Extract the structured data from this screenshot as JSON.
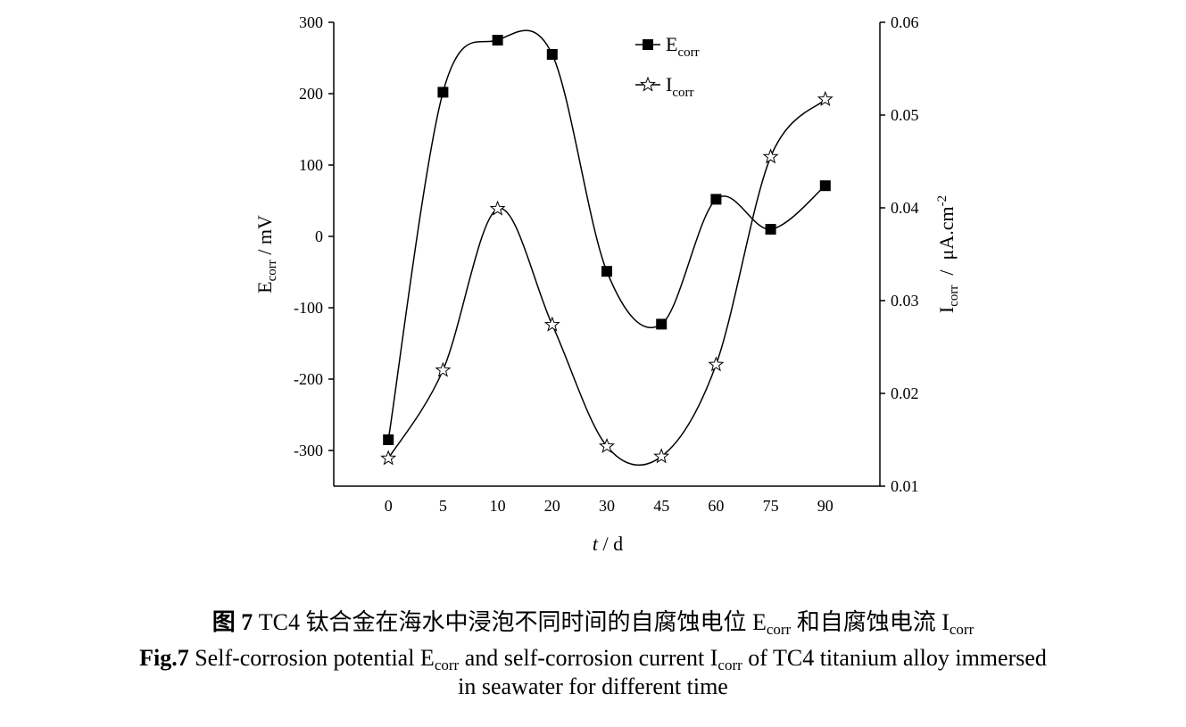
{
  "chart_data": {
    "type": "line",
    "categories": [
      "0",
      "5",
      "10",
      "20",
      "30",
      "45",
      "60",
      "75",
      "90"
    ],
    "x_label": {
      "main": "t",
      "rest": " / d"
    },
    "y_label": {
      "main": "E",
      "sub": "corr",
      "rest": " / mV"
    },
    "y2_label": {
      "main": "I",
      "sub": "corr",
      "rest": "  /  μA.cm",
      "sup": "-2"
    },
    "ylim": [
      -350,
      300
    ],
    "yticks": [
      -300,
      -200,
      -100,
      0,
      100,
      200,
      300
    ],
    "y2lim": [
      0.01,
      0.06
    ],
    "y2ticks": [
      0.01,
      0.02,
      0.03,
      0.04,
      0.05,
      0.06
    ],
    "smooth": true,
    "series": [
      {
        "name": "E",
        "name_sub": "corr",
        "color": "#000000",
        "marker": "square",
        "values": [
          -285,
          202,
          275,
          255,
          -49,
          -123,
          52,
          10,
          71
        ]
      },
      {
        "name": "I",
        "name_sub": "corr",
        "color": "#000000",
        "marker": "star",
        "axis": "y2",
        "values": [
          0.013,
          0.0225,
          0.0399,
          0.0274,
          0.0143,
          0.0132,
          0.0231,
          0.0455,
          0.0517
        ]
      }
    ],
    "caption_cn": [
      "图 7",
      " TC4 钛合金在海水中浸泡不同时间的自腐蚀电位 E",
      "corr",
      " 和自腐蚀电流 I",
      "corr"
    ],
    "caption_en": [
      "Fig.7",
      " Self-corrosion potential E",
      "corr",
      " and self-corrosion current I",
      "corr",
      " of TC4 titanium alloy immersed",
      "in seawater for different time"
    ]
  }
}
